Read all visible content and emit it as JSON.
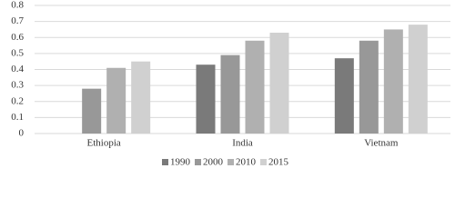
{
  "chart_data": {
    "type": "bar",
    "categories": [
      "Ethiopia",
      "India",
      "Vietnam"
    ],
    "series": [
      {
        "name": "1990",
        "color": "#7a7a7a",
        "values": [
          null,
          0.43,
          0.47
        ]
      },
      {
        "name": "2000",
        "color": "#989898",
        "values": [
          0.28,
          0.49,
          0.58
        ]
      },
      {
        "name": "2010",
        "color": "#b0b0b0",
        "values": [
          0.41,
          0.58,
          0.65
        ]
      },
      {
        "name": "2015",
        "color": "#d0d0d0",
        "values": [
          0.45,
          0.63,
          0.68
        ]
      }
    ],
    "ylim": [
      0,
      0.8
    ],
    "yticks": [
      0,
      0.1,
      0.2,
      0.3,
      0.4,
      0.5,
      0.6,
      0.7,
      0.8
    ],
    "grid": true,
    "legend": "bottom"
  }
}
